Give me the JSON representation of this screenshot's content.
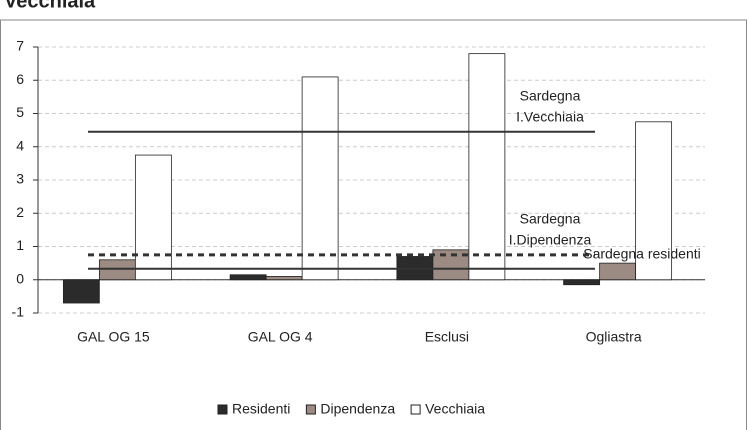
{
  "chart_data": {
    "type": "bar",
    "title": "Vecchiaia",
    "categories": [
      "GAL OG 15",
      "GAL OG 4",
      "Esclusi",
      "Ogliastra"
    ],
    "series": [
      {
        "name": "Residenti",
        "color": "#2b2b2b",
        "values": [
          -0.7,
          0.15,
          0.7,
          -0.15
        ]
      },
      {
        "name": "Dipendenza",
        "color": "#9b8b82",
        "values": [
          0.6,
          0.1,
          0.9,
          0.5
        ]
      },
      {
        "name": "Vecchiaia",
        "color": "#ffffff",
        "values": [
          3.75,
          6.1,
          6.8,
          4.75
        ]
      }
    ],
    "reference_lines": [
      {
        "label_lines": [
          "Sardegna",
          "I.Vecchiaia"
        ],
        "value": 4.45,
        "style": "solid"
      },
      {
        "label_lines": [
          "Sardegna",
          "I.Dipendenza"
        ],
        "value": 0.75,
        "style": "dashed"
      },
      {
        "label_lines": [
          "Sardegna residenti"
        ],
        "value": 0.33,
        "style": "solid"
      }
    ],
    "ylim": [
      -1,
      7
    ],
    "yticks": [
      -1,
      0,
      1,
      2,
      3,
      4,
      5,
      6,
      7
    ],
    "grid": true,
    "legend": "bottom"
  }
}
